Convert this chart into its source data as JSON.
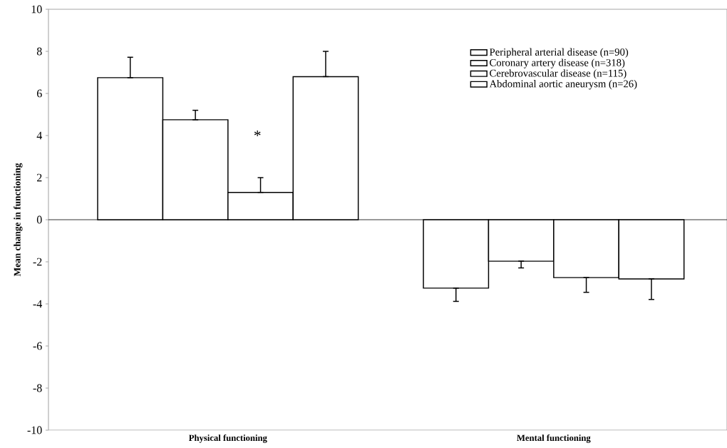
{
  "chart_data": {
    "type": "bar",
    "ylabel": "Mean change in functioning",
    "categories": [
      "Physical functioning",
      "Mental functioning"
    ],
    "series": [
      {
        "name": "Peripheral arterial disease (n=90)",
        "color": "#ffffff",
        "values": [
          6.75,
          -3.25
        ],
        "errors": [
          [
            6.75,
            7.72
          ],
          [
            -3.88,
            -3.25
          ]
        ]
      },
      {
        "name": "Coronary artery disease (n=318)",
        "color": "#ffffff",
        "values": [
          4.75,
          -1.97
        ],
        "errors": [
          [
            4.75,
            5.2
          ],
          [
            -2.29,
            -1.97
          ]
        ]
      },
      {
        "name": "Cerebrovascular disease (n=115)",
        "color": "#ffffff",
        "values": [
          1.3,
          -2.75
        ],
        "errors": [
          [
            1.3,
            2.0
          ],
          [
            -3.45,
            -2.75
          ]
        ]
      },
      {
        "name": "Abdominal aortic aneurysm (n=26)",
        "color": "#ffffff",
        "values": [
          6.8,
          -2.81
        ],
        "errors": [
          [
            6.8,
            8.0
          ],
          [
            -3.79,
            -2.81
          ]
        ]
      }
    ],
    "ylim": [
      -10,
      10
    ],
    "yticks": [
      -10,
      -8,
      -6,
      -4,
      -2,
      0,
      2,
      4,
      6,
      8,
      10
    ],
    "annotations": [
      "*"
    ],
    "ref_lines": [
      {
        "axis": "y",
        "value": 0,
        "color": "#000000"
      }
    ],
    "legend": "top right",
    "grid": false
  }
}
